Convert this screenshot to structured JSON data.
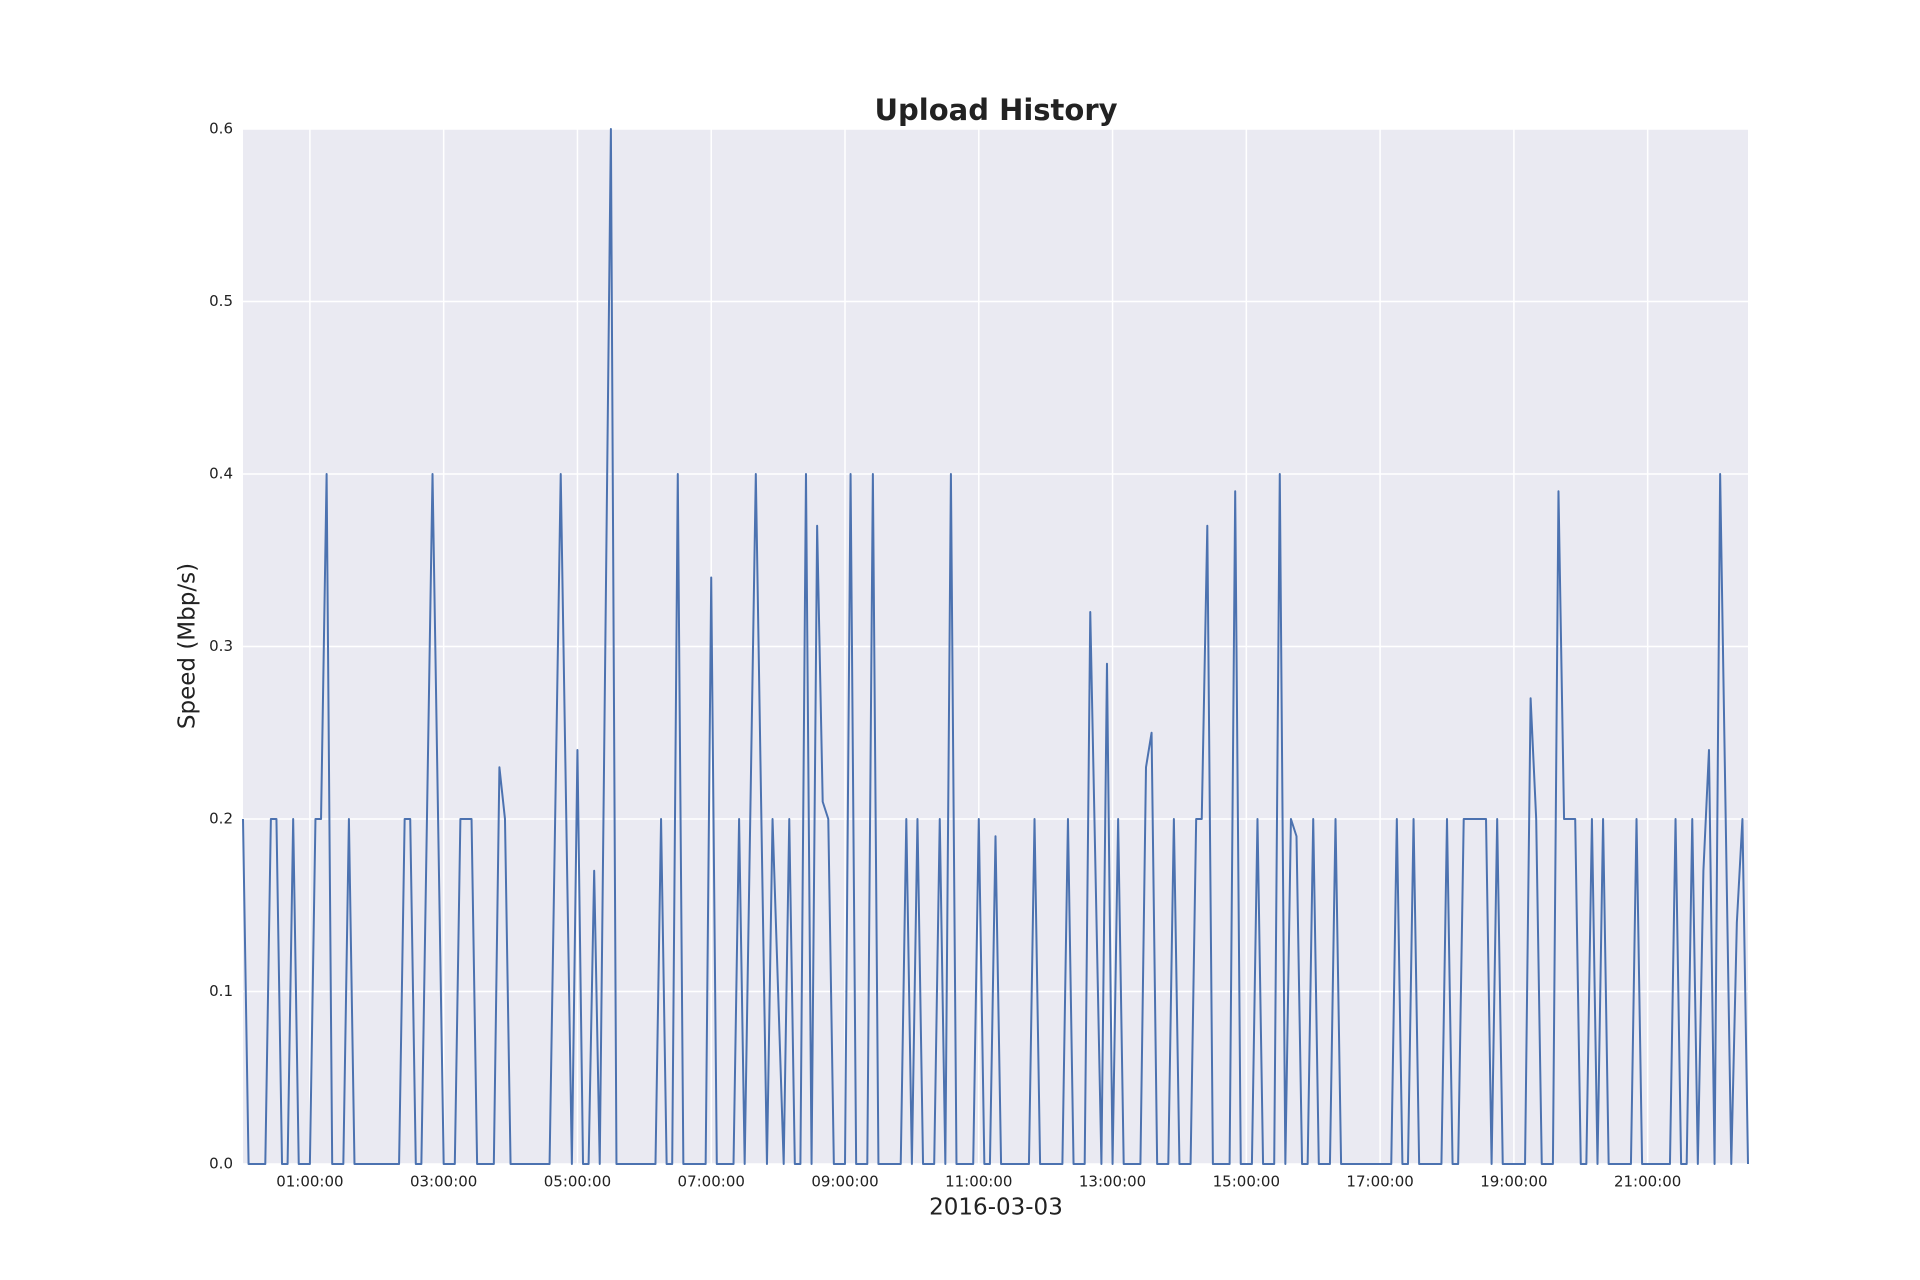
{
  "chart_data": {
    "type": "line",
    "title": "Upload History",
    "x_label": "2016-03-03",
    "y_label": "Speed (Mbp/s)",
    "x": [
      "00:00:00",
      "00:05:00",
      "00:20:00",
      "00:25:00",
      "00:30:00",
      "00:35:00",
      "00:40:00",
      "00:45:00",
      "00:50:00",
      "01:00:00",
      "01:05:00",
      "01:10:00",
      "01:15:00",
      "01:20:00",
      "01:30:00",
      "01:35:00",
      "01:40:00",
      "02:20:00",
      "02:25:00",
      "02:30:00",
      "02:35:00",
      "02:40:00",
      "02:50:00",
      "03:00:00",
      "03:10:00",
      "03:15:00",
      "03:25:00",
      "03:30:00",
      "03:45:00",
      "03:50:00",
      "03:55:00",
      "04:00:00",
      "04:35:00",
      "04:45:00",
      "04:55:00",
      "05:00:00",
      "05:05:00",
      "05:10:00",
      "05:15:00",
      "05:20:00",
      "05:30:00",
      "05:35:00",
      "06:10:00",
      "06:15:00",
      "06:20:00",
      "06:25:00",
      "06:30:00",
      "06:35:00",
      "06:55:00",
      "07:00:00",
      "07:05:00",
      "07:20:00",
      "07:25:00",
      "07:30:00",
      "07:40:00",
      "07:50:00",
      "07:55:00",
      "08:05:00",
      "08:10:00",
      "08:15:00",
      "08:20:00",
      "08:25:00",
      "08:30:00",
      "08:35:00",
      "08:40:00",
      "08:45:00",
      "08:50:00",
      "09:00:00",
      "09:05:00",
      "09:10:00",
      "09:20:00",
      "09:25:00",
      "09:30:00",
      "09:50:00",
      "09:55:00",
      "10:00:00",
      "10:05:00",
      "10:10:00",
      "10:20:00",
      "10:25:00",
      "10:30:00",
      "10:35:00",
      "10:40:00",
      "10:55:00",
      "11:00:00",
      "11:05:00",
      "11:10:00",
      "11:15:00",
      "11:20:00",
      "11:45:00",
      "11:50:00",
      "11:55:00",
      "12:15:00",
      "12:20:00",
      "12:25:00",
      "12:35:00",
      "12:40:00",
      "12:50:00",
      "12:55:00",
      "13:00:00",
      "13:05:00",
      "13:10:00",
      "13:25:00",
      "13:30:00",
      "13:35:00",
      "13:40:00",
      "13:50:00",
      "13:55:00",
      "14:00:00",
      "14:10:00",
      "14:15:00",
      "14:20:00",
      "14:25:00",
      "14:30:00",
      "14:45:00",
      "14:50:00",
      "14:55:00",
      "15:05:00",
      "15:10:00",
      "15:15:00",
      "15:25:00",
      "15:30:00",
      "15:35:00",
      "15:40:00",
      "15:45:00",
      "15:50:00",
      "15:55:00",
      "16:00:00",
      "16:05:00",
      "16:15:00",
      "16:20:00",
      "16:25:00",
      "17:10:00",
      "17:15:00",
      "17:20:00",
      "17:25:00",
      "17:30:00",
      "17:35:00",
      "17:55:00",
      "18:00:00",
      "18:05:00",
      "18:10:00",
      "18:15:00",
      "18:35:00",
      "18:40:00",
      "18:45:00",
      "18:50:00",
      "19:10:00",
      "19:15:00",
      "19:20:00",
      "19:25:00",
      "19:35:00",
      "19:40:00",
      "19:45:00",
      "19:55:00",
      "20:00:00",
      "20:05:00",
      "20:10:00",
      "20:15:00",
      "20:20:00",
      "20:25:00",
      "20:45:00",
      "20:50:00",
      "20:55:00",
      "21:20:00",
      "21:25:00",
      "21:30:00",
      "21:35:00",
      "21:40:00",
      "21:45:00",
      "21:50:00",
      "21:55:00",
      "22:00:00",
      "22:05:00",
      "22:15:00",
      "22:20:00",
      "22:25:00",
      "22:30:00"
    ],
    "series": [
      {
        "name": "Upload",
        "color": "#4c72b0",
        "values": [
          0.2,
          0,
          0,
          0.2,
          0.2,
          0,
          0,
          0.2,
          0,
          0,
          0.2,
          0.2,
          0.4,
          0,
          0,
          0.2,
          0,
          0,
          0.2,
          0.2,
          0,
          0,
          0.4,
          0,
          0,
          0.2,
          0.2,
          0,
          0,
          0.23,
          0.2,
          0,
          0,
          0.4,
          0,
          0.24,
          0,
          0,
          0.17,
          0,
          0.6,
          0,
          0,
          0.2,
          0,
          0,
          0.4,
          0,
          0,
          0.34,
          0,
          0,
          0.2,
          0,
          0.4,
          0,
          0.2,
          0,
          0.2,
          0,
          0,
          0.4,
          0,
          0.37,
          0.21,
          0.2,
          0,
          0,
          0.4,
          0,
          0,
          0.4,
          0,
          0,
          0.2,
          0,
          0.2,
          0,
          0,
          0.2,
          0,
          0.4,
          0,
          0,
          0.2,
          0,
          0,
          0.19,
          0,
          0,
          0.2,
          0,
          0,
          0.2,
          0,
          0,
          0.32,
          0,
          0.29,
          0,
          0.2,
          0,
          0,
          0.23,
          0.25,
          0,
          0,
          0.2,
          0,
          0,
          0.2,
          0.2,
          0.37,
          0,
          0,
          0.39,
          0,
          0,
          0.2,
          0,
          0,
          0.4,
          0,
          0.2,
          0.19,
          0,
          0,
          0.2,
          0,
          0,
          0.2,
          0,
          0,
          0.2,
          0,
          0,
          0.2,
          0,
          0,
          0.2,
          0,
          0,
          0.2,
          0.2,
          0,
          0.2,
          0,
          0,
          0.27,
          0.2,
          0,
          0,
          0.39,
          0.2,
          0.2,
          0,
          0,
          0.2,
          0,
          0.2,
          0,
          0,
          0.2,
          0,
          0,
          0.2,
          0,
          0,
          0.2,
          0,
          0.17,
          0.24,
          0,
          0.4,
          0,
          0.14,
          0.2,
          0
        ]
      }
    ],
    "xlim": [
      "00:00:00",
      "22:30:00"
    ],
    "xticks": [
      "01:00:00",
      "03:00:00",
      "05:00:00",
      "07:00:00",
      "09:00:00",
      "11:00:00",
      "13:00:00",
      "15:00:00",
      "17:00:00",
      "19:00:00",
      "21:00:00"
    ],
    "ylim": [
      0,
      0.6
    ],
    "yticks": [
      {
        "value": 0,
        "label": "0.0"
      },
      0.1,
      0.2,
      0.3,
      0.4,
      0.5,
      0.6
    ],
    "grid": true
  }
}
